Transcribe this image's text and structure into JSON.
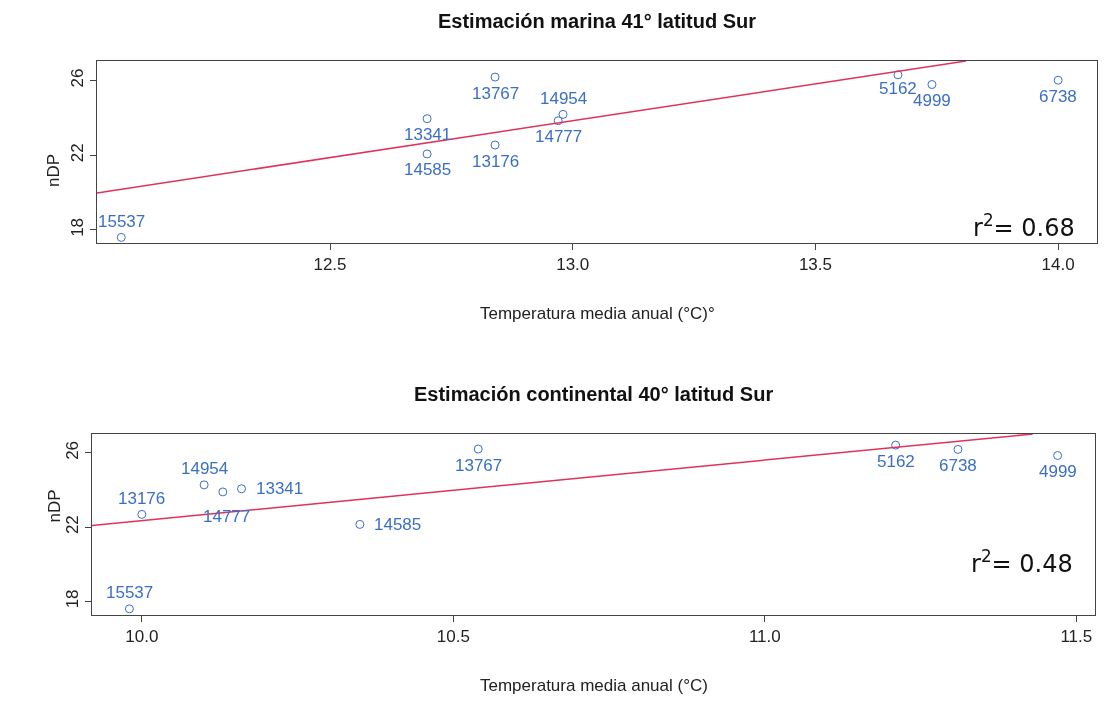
{
  "chart_data": [
    {
      "type": "scatter",
      "title": "Estimación marina 41° latitud Sur",
      "xlabel": "Temperatura media anual (°C)°",
      "ylabel": "nDP",
      "xlim": [
        12.02,
        14.08
      ],
      "ylim": [
        17.3,
        27.05
      ],
      "xticks": [
        12.5,
        {
          "value": 13,
          "label": "13.0"
        },
        13.5,
        {
          "value": 14,
          "label": "14.0"
        }
      ],
      "yticks": [
        18,
        22,
        26
      ],
      "annotations": [
        "r$^{2}$= 0.68",
        {
          "text": "15537",
          "x": 12.07,
          "y": 17.6
        },
        {
          "text": "13341",
          "x": 12.7,
          "y": 23.96
        },
        {
          "text": "14585",
          "x": 12.7,
          "y": 22.07
        },
        {
          "text": "13767",
          "x": 12.84,
          "y": 26.19
        },
        {
          "text": "13176",
          "x": 12.84,
          "y": 22.55
        },
        {
          "text": "14954",
          "x": 12.98,
          "y": 24.19
        },
        {
          "text": "14777",
          "x": 12.97,
          "y": 23.85
        },
        {
          "text": "5162",
          "x": 13.67,
          "y": 26.31
        },
        {
          "text": "4999",
          "x": 13.74,
          "y": 25.79
        },
        {
          "text": "6738",
          "x": 14.0,
          "y": 26.02
        }
      ],
      "series": [
        {
          "color": "#3b6fc6",
          "marker": "circle",
          "x": [
            12.07,
            12.7,
            12.7,
            12.84,
            12.84,
            12.98,
            12.97,
            13.67,
            13.74,
            14.0
          ],
          "values": [
            17.6,
            23.96,
            22.07,
            26.19,
            22.55,
            24.19,
            23.85,
            26.31,
            25.79,
            26.02
          ]
        },
        {
          "type": "line",
          "color": "#e0325a",
          "line_style": "solid",
          "x": [
            12.02,
            13.81
          ],
          "values": [
            19.98,
            27.05
          ]
        }
      ]
    },
    {
      "type": "scatter",
      "title": "Estimación continental 40° latitud Sur",
      "xlabel": "Temperatura media anual (°C)",
      "ylabel": "nDP",
      "xlim": [
        9.92,
        11.53
      ],
      "ylim": [
        17.27,
        27.02
      ],
      "xticks": [
        {
          "value": 10,
          "label": "10.0"
        },
        10.5,
        {
          "value": 11,
          "label": "11.0"
        },
        11.5
      ],
      "yticks": [
        18,
        22,
        26
      ],
      "annotations": [
        "r$^{2}$= 0.48",
        {
          "text": "15537",
          "x": 9.98,
          "y": 17.6
        },
        {
          "text": "13176",
          "x": 10.0,
          "y": 22.69
        },
        {
          "text": "14954",
          "x": 10.1,
          "y": 24.28
        },
        {
          "text": "14777",
          "x": 10.13,
          "y": 23.9
        },
        {
          "text": "13341",
          "x": 10.16,
          "y": 24.07
        },
        {
          "text": "14585",
          "x": 10.35,
          "y": 22.15
        },
        {
          "text": "13767",
          "x": 10.54,
          "y": 26.21
        },
        {
          "text": "5162",
          "x": 11.21,
          "y": 26.42
        },
        {
          "text": "6738",
          "x": 11.31,
          "y": 26.19
        },
        {
          "text": "4999",
          "x": 11.47,
          "y": 25.86
        }
      ],
      "series": [
        {
          "color": "#3b6fc6",
          "marker": "circle",
          "x": [
            9.98,
            10.0,
            10.1,
            10.13,
            10.16,
            10.35,
            10.54,
            11.21,
            11.31,
            11.47
          ],
          "values": [
            17.6,
            22.69,
            24.28,
            23.9,
            24.07,
            22.15,
            26.21,
            26.42,
            26.19,
            25.86
          ]
        },
        {
          "type": "line",
          "color": "#e0325a",
          "line_style": "solid",
          "x": [
            9.92,
            11.43
          ],
          "values": [
            22.09,
            27.02
          ]
        }
      ]
    }
  ]
}
